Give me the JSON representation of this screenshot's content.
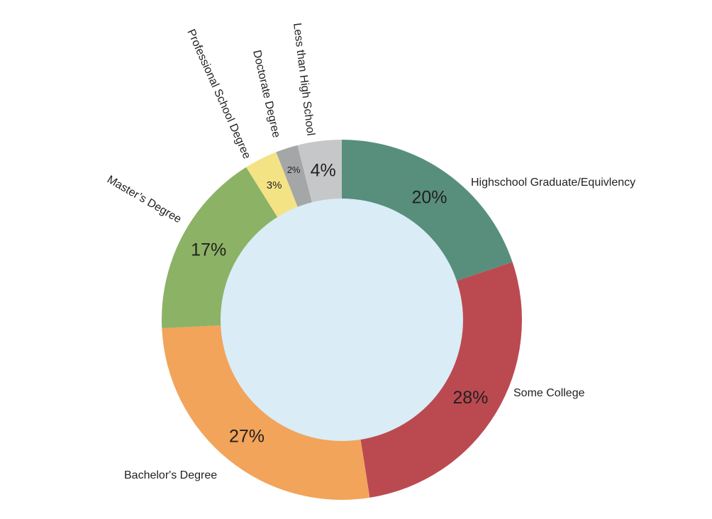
{
  "chart_data": {
    "type": "pie",
    "variant": "donut",
    "center_fill": "#daecf6",
    "slices": [
      {
        "label": "Highschool Graduate/Equivlency",
        "value": 20,
        "value_label": "20%",
        "color": "#578f7c"
      },
      {
        "label": "Some College",
        "value": 28,
        "value_label": "28%",
        "color": "#bb4a50"
      },
      {
        "label": "Bachelor's Degree",
        "value": 27,
        "value_label": "27%",
        "color": "#f2a45a"
      },
      {
        "label": "Master’s Degree",
        "value": 17,
        "value_label": "17%",
        "color": "#8cb266"
      },
      {
        "label": "Professional School Degree",
        "value": 3,
        "value_label": "3%",
        "color": "#f4e385"
      },
      {
        "label": "Doctorate Degree",
        "value": 2,
        "value_label": "2%",
        "color": "#a5a6a8"
      },
      {
        "label": "Less than High School",
        "value": 4,
        "value_label": "4%",
        "color": "#c6c7c9"
      }
    ]
  }
}
